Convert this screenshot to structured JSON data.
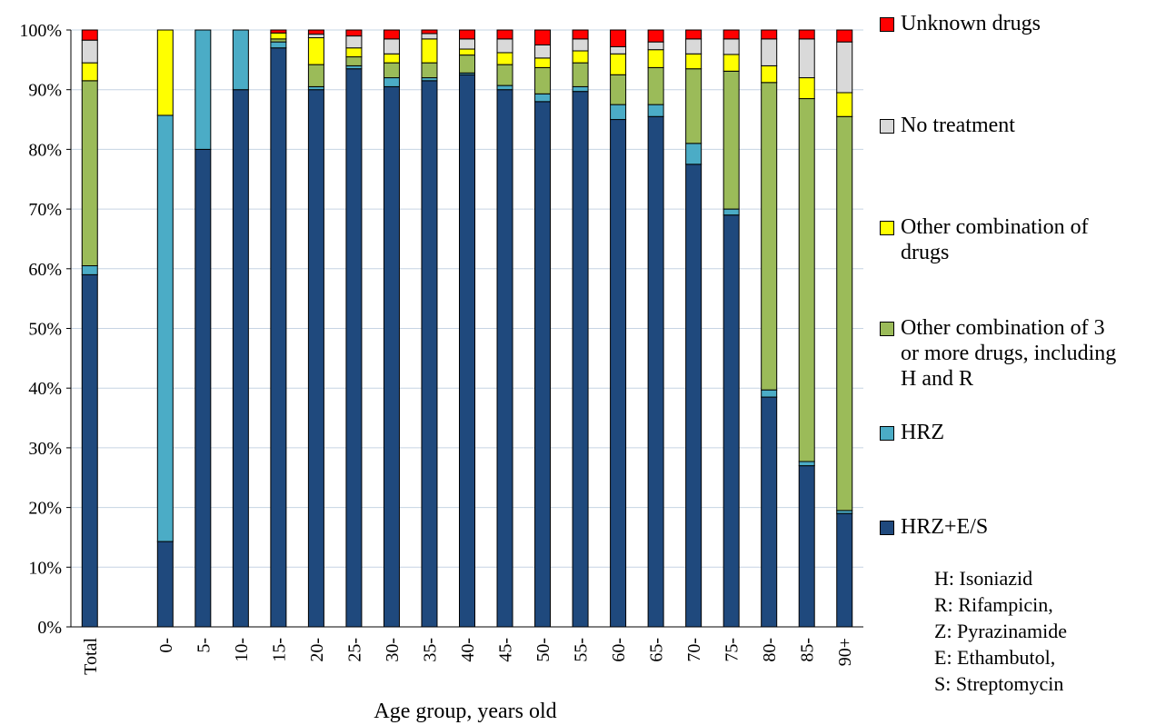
{
  "chart_data": {
    "type": "bar",
    "stacked": true,
    "xlabel": "Age group, years old",
    "ylabel": "",
    "ylim": [
      0,
      100
    ],
    "y_ticks": [
      "0%",
      "10%",
      "20%",
      "30%",
      "40%",
      "50%",
      "60%",
      "70%",
      "80%",
      "90%",
      "100%"
    ],
    "grid": true,
    "legend_position": "right",
    "categories": [
      "Total",
      "",
      "0-",
      "5-",
      "10-",
      "15-",
      "20-",
      "25-",
      "30-",
      "35-",
      "40-",
      "45-",
      "50-",
      "55-",
      "60-",
      "65-",
      "70-",
      "75-",
      "80-",
      "85-",
      "90+"
    ],
    "series": [
      {
        "name": "HRZ+E/S",
        "color": "#1f497d",
        "values": [
          59,
          0,
          14.3,
          80,
          90,
          97,
          90,
          93.5,
          90.5,
          91.5,
          92.5,
          90,
          88,
          89.7,
          85,
          85.5,
          77.5,
          69,
          38.5,
          27,
          19
        ]
      },
      {
        "name": "HRZ",
        "color": "#4bacc6",
        "values": [
          1.5,
          0,
          71.4,
          20,
          10,
          1,
          0.5,
          0.5,
          1.5,
          0.5,
          0.3,
          0.7,
          1.3,
          0.8,
          2.5,
          2,
          3.5,
          1,
          1.2,
          0.7,
          0.5
        ]
      },
      {
        "name": "Other combination of 3 or more drugs, including H and R",
        "color": "#9bbb59",
        "values": [
          31,
          0,
          0,
          0,
          0,
          0.5,
          3.7,
          1.5,
          2.5,
          2.5,
          3,
          3.5,
          4.4,
          4,
          5,
          6.2,
          12.5,
          23.1,
          51.5,
          60.8,
          66
        ]
      },
      {
        "name": "Other combination of drugs",
        "color": "#ffff00",
        "values": [
          3,
          0,
          14.3,
          0,
          0,
          1,
          4.5,
          1.5,
          1.5,
          4,
          1,
          2,
          1.6,
          2,
          3.5,
          3,
          2.5,
          2.8,
          2.8,
          3.5,
          4
        ]
      },
      {
        "name": "No treatment",
        "color": "#d9d9d9",
        "values": [
          3.8,
          0,
          0,
          0,
          0,
          0,
          0.6,
          2,
          2.5,
          0.9,
          1.7,
          2.3,
          2.2,
          2,
          1.2,
          1.3,
          2.5,
          2.6,
          4.5,
          6.5,
          8.5
        ]
      },
      {
        "name": "Unknown drugs",
        "color": "#ff0000",
        "values": [
          1.7,
          0,
          0,
          0,
          0,
          0.5,
          0.7,
          1,
          1.5,
          0.6,
          1.5,
          1.5,
          2.5,
          1.5,
          2.8,
          2,
          1.5,
          1.5,
          1.5,
          1.5,
          2
        ]
      }
    ],
    "legend_order": [
      "Unknown drugs",
      "No treatment",
      "Other combination of drugs",
      "Other combination of 3 or more drugs, including H and R",
      "HRZ",
      "HRZ+E/S"
    ],
    "legend_labels": {
      "Unknown drugs": "Unknown drugs",
      "No treatment": "No treatment",
      "Other combination of drugs": "Other combination of\ndrugs",
      "Other combination of 3 or more drugs, including H and R": "Other combination of 3\nor more drugs, including\nH and R",
      "HRZ": "HRZ",
      "HRZ+E/S": "HRZ+E/S"
    },
    "annotations": [
      "H: Isoniazid",
      "R: Rifampicin,",
      "Z: Pyrazinamide",
      "E: Ethambutol,",
      "S: Streptomycin"
    ]
  }
}
